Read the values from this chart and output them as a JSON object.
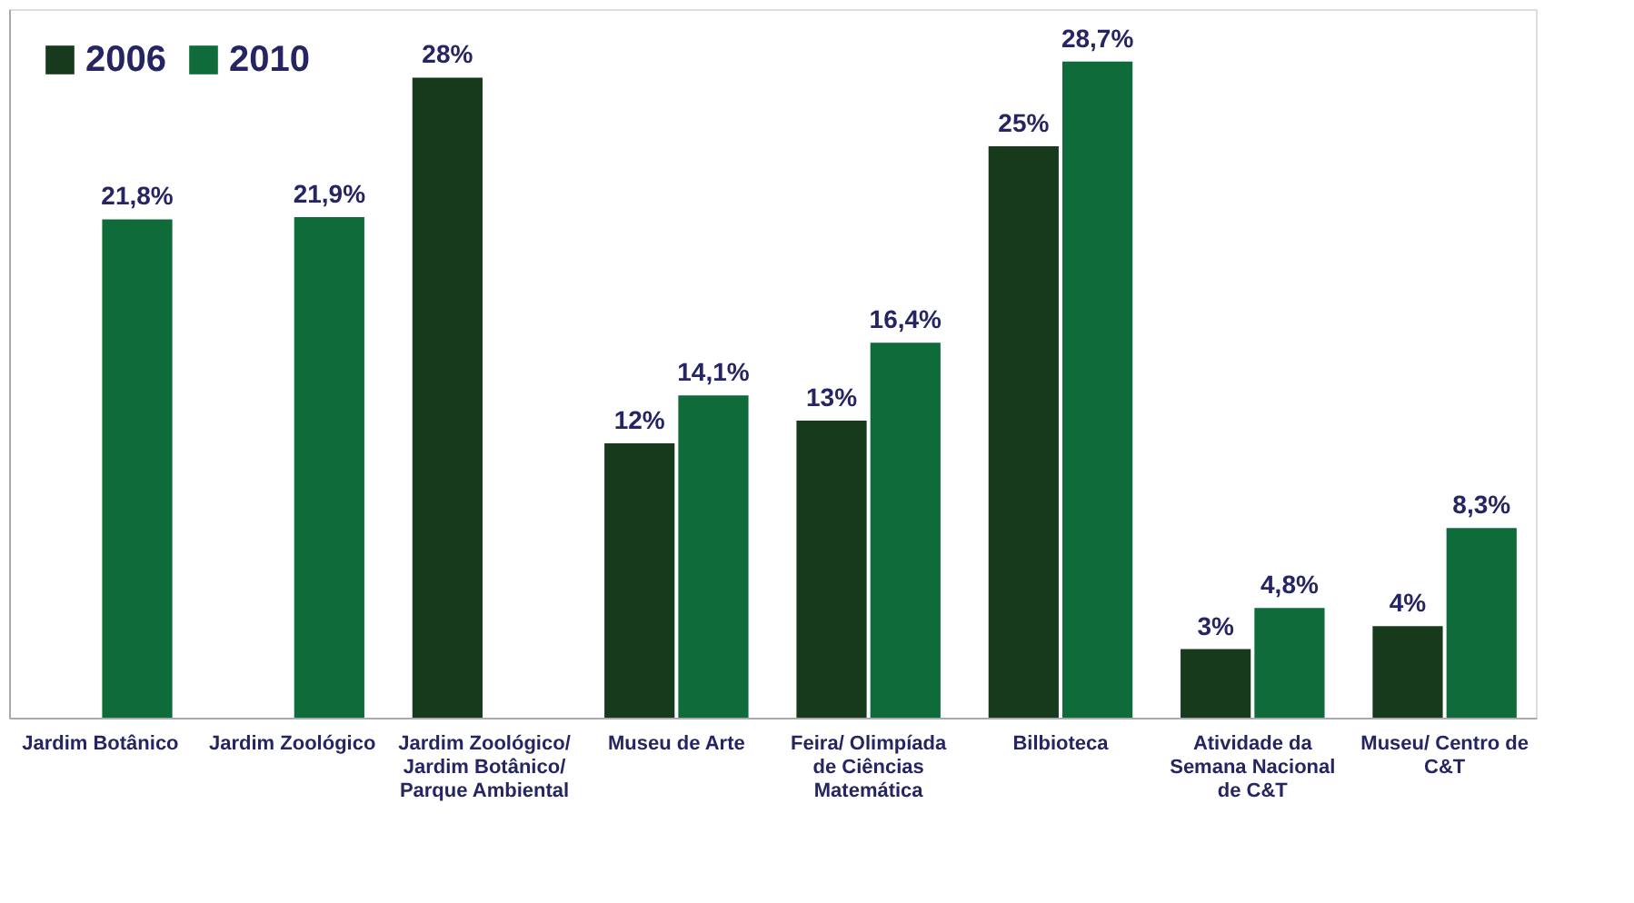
{
  "chart_data": {
    "type": "bar",
    "categories": [
      "Jardim Botânico",
      "Jardim Zoológico",
      "Jardim Zoológico/\nJardim Botânico/\nParque Ambiental",
      "Museu de Arte",
      "Feira/ Olimpíada\nde Ciências\nMatemática",
      "Bilbioteca",
      "Atividade da\nSemana Nacional\nde C&T",
      "Museu/ Centro de\nC&T"
    ],
    "series": [
      {
        "name": "2006",
        "color": "#17391c",
        "values": [
          null,
          null,
          28,
          12,
          13,
          25,
          3,
          4
        ],
        "value_labels": [
          null,
          null,
          "28%",
          "12%",
          "13%",
          "25%",
          "3%",
          "4%"
        ]
      },
      {
        "name": "2010",
        "color": "#0f6b3a",
        "values": [
          21.8,
          21.9,
          null,
          14.1,
          16.4,
          28.7,
          4.8,
          8.3
        ],
        "value_labels": [
          "21,8%",
          "21,9%",
          null,
          "14,1%",
          "16,4%",
          "28,7%",
          "4,8%",
          "8,3%"
        ]
      }
    ],
    "ylim": [
      0,
      31
    ],
    "legend": "top left",
    "grid": false,
    "tick_labels": "x"
  }
}
